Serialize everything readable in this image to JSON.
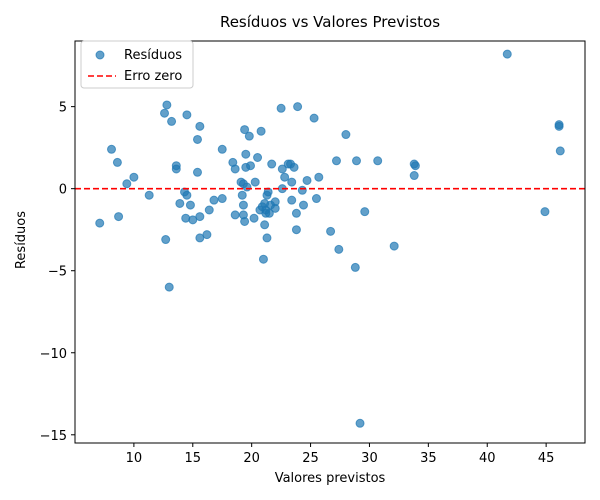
{
  "chart_data": {
    "type": "scatter",
    "title": "Resíduos vs Valores Previstos",
    "xlabel": "Valores previstos",
    "ylabel": "Resíduos",
    "xlim": [
      5.0,
      48.3
    ],
    "ylim": [
      -15.5,
      9.0
    ],
    "xticks": [
      10,
      15,
      20,
      25,
      30,
      35,
      40,
      45
    ],
    "yticks": [
      5,
      0,
      -5,
      -10,
      -15
    ],
    "ytick_labels": [
      "5",
      "0",
      "−5",
      "−10",
      "−15"
    ],
    "grid": false,
    "legend_position": "top-left",
    "series": [
      {
        "name": "Resíduos",
        "color": "#1f77b4",
        "points": [
          [
            7.1,
            -2.1
          ],
          [
            8.1,
            2.4
          ],
          [
            8.6,
            1.6
          ],
          [
            8.7,
            -1.7
          ],
          [
            9.4,
            0.3
          ],
          [
            10.0,
            0.7
          ],
          [
            11.3,
            -0.4
          ],
          [
            12.6,
            4.6
          ],
          [
            12.8,
            5.1
          ],
          [
            12.7,
            -3.1
          ],
          [
            13.0,
            -6.0
          ],
          [
            13.2,
            4.1
          ],
          [
            13.6,
            1.2
          ],
          [
            13.6,
            1.4
          ],
          [
            13.9,
            -0.9
          ],
          [
            14.3,
            -0.2
          ],
          [
            14.4,
            -1.8
          ],
          [
            14.5,
            4.5
          ],
          [
            14.5,
            -0.4
          ],
          [
            14.8,
            -1.0
          ],
          [
            15.0,
            -1.9
          ],
          [
            15.4,
            3.0
          ],
          [
            15.4,
            1.0
          ],
          [
            15.6,
            3.8
          ],
          [
            15.6,
            -1.7
          ],
          [
            15.6,
            -3.0
          ],
          [
            16.2,
            -2.8
          ],
          [
            16.4,
            -1.3
          ],
          [
            16.8,
            -0.7
          ],
          [
            17.5,
            2.4
          ],
          [
            17.5,
            -0.6
          ],
          [
            18.4,
            1.6
          ],
          [
            18.6,
            1.2
          ],
          [
            18.6,
            -1.6
          ],
          [
            19.1,
            0.4
          ],
          [
            19.2,
            -0.4
          ],
          [
            19.3,
            0.3
          ],
          [
            19.3,
            -1.6
          ],
          [
            19.4,
            3.6
          ],
          [
            19.3,
            -1.0
          ],
          [
            19.4,
            -2.0
          ],
          [
            19.5,
            2.1
          ],
          [
            19.5,
            1.3
          ],
          [
            19.6,
            0.1
          ],
          [
            19.8,
            3.2
          ],
          [
            19.9,
            1.4
          ],
          [
            20.2,
            -1.8
          ],
          [
            20.3,
            0.4
          ],
          [
            20.5,
            1.9
          ],
          [
            20.7,
            -1.3
          ],
          [
            20.8,
            3.5
          ],
          [
            20.9,
            -1.1
          ],
          [
            21.0,
            -4.3
          ],
          [
            21.1,
            -2.2
          ],
          [
            21.1,
            -0.9
          ],
          [
            21.2,
            -1.3
          ],
          [
            21.2,
            -1.5
          ],
          [
            21.3,
            -3.0
          ],
          [
            21.3,
            -0.4
          ],
          [
            21.4,
            -0.2
          ],
          [
            21.5,
            -1.5
          ],
          [
            21.6,
            -1.0
          ],
          [
            21.7,
            1.5
          ],
          [
            22.0,
            -1.2
          ],
          [
            22.0,
            -0.8
          ],
          [
            22.5,
            4.9
          ],
          [
            22.6,
            1.2
          ],
          [
            22.6,
            0.0
          ],
          [
            22.8,
            0.7
          ],
          [
            23.1,
            1.5
          ],
          [
            23.3,
            1.5
          ],
          [
            23.4,
            0.4
          ],
          [
            23.4,
            -0.7
          ],
          [
            23.6,
            1.3
          ],
          [
            23.8,
            -1.5
          ],
          [
            23.8,
            -2.5
          ],
          [
            23.9,
            5.0
          ],
          [
            24.3,
            -0.1
          ],
          [
            24.4,
            -1.0
          ],
          [
            24.7,
            0.5
          ],
          [
            25.3,
            4.3
          ],
          [
            25.5,
            -0.6
          ],
          [
            25.7,
            0.7
          ],
          [
            26.7,
            -2.6
          ],
          [
            27.2,
            1.7
          ],
          [
            27.4,
            -3.7
          ],
          [
            28.0,
            3.3
          ],
          [
            28.8,
            -4.8
          ],
          [
            28.9,
            1.7
          ],
          [
            29.2,
            -14.3
          ],
          [
            29.6,
            -1.4
          ],
          [
            30.7,
            1.7
          ],
          [
            32.1,
            -3.5
          ],
          [
            33.8,
            1.5
          ],
          [
            33.9,
            1.4
          ],
          [
            33.8,
            0.8
          ],
          [
            41.7,
            8.2
          ],
          [
            44.9,
            -1.4
          ],
          [
            46.1,
            3.8
          ],
          [
            46.1,
            3.9
          ],
          [
            46.2,
            2.3
          ]
        ]
      }
    ],
    "reference_line": {
      "name": "Erro zero",
      "y": 0,
      "color": "#ff0000",
      "style": "dashed"
    }
  }
}
